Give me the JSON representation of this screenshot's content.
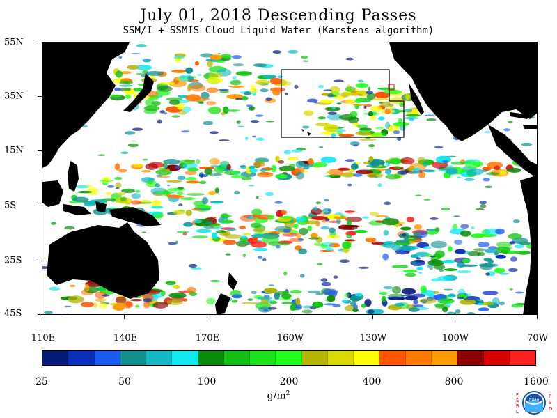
{
  "title": "July 01, 2018  Descending Passes",
  "subtitle": "SSM/I + SSMIS Cloud Liquid Water (Karstens algorithm)",
  "lat_labels": [
    "55N",
    "35N",
    "15N",
    "5S",
    "25S",
    "45S"
  ],
  "lon_labels": [
    "110E",
    "140E",
    "170E",
    "160W",
    "130W",
    "100W",
    "70W"
  ],
  "legend": {
    "labels": [
      "25",
      "50",
      "100",
      "200",
      "400",
      "800",
      "1600"
    ],
    "units_prefix": "g/m",
    "units_exp": "2",
    "colors": [
      "#061a78",
      "#0a2fb8",
      "#1a5cf0",
      "#119090",
      "#14b7c3",
      "#11e8f0",
      "#0a8c0a",
      "#12bf12",
      "#1de01d",
      "#20ff20",
      "#b3b300",
      "#d9d900",
      "#ffff00",
      "#ff5500",
      "#ff7a00",
      "#ff9a00",
      "#8c0000",
      "#d90000",
      "#ff2020"
    ]
  },
  "logo": {
    "left_letters": "ESRL",
    "right_letters": "PSD",
    "center_text": "NOAA"
  },
  "colors": {
    "land": "#000000",
    "ocean_clear": "#ffffff"
  }
}
